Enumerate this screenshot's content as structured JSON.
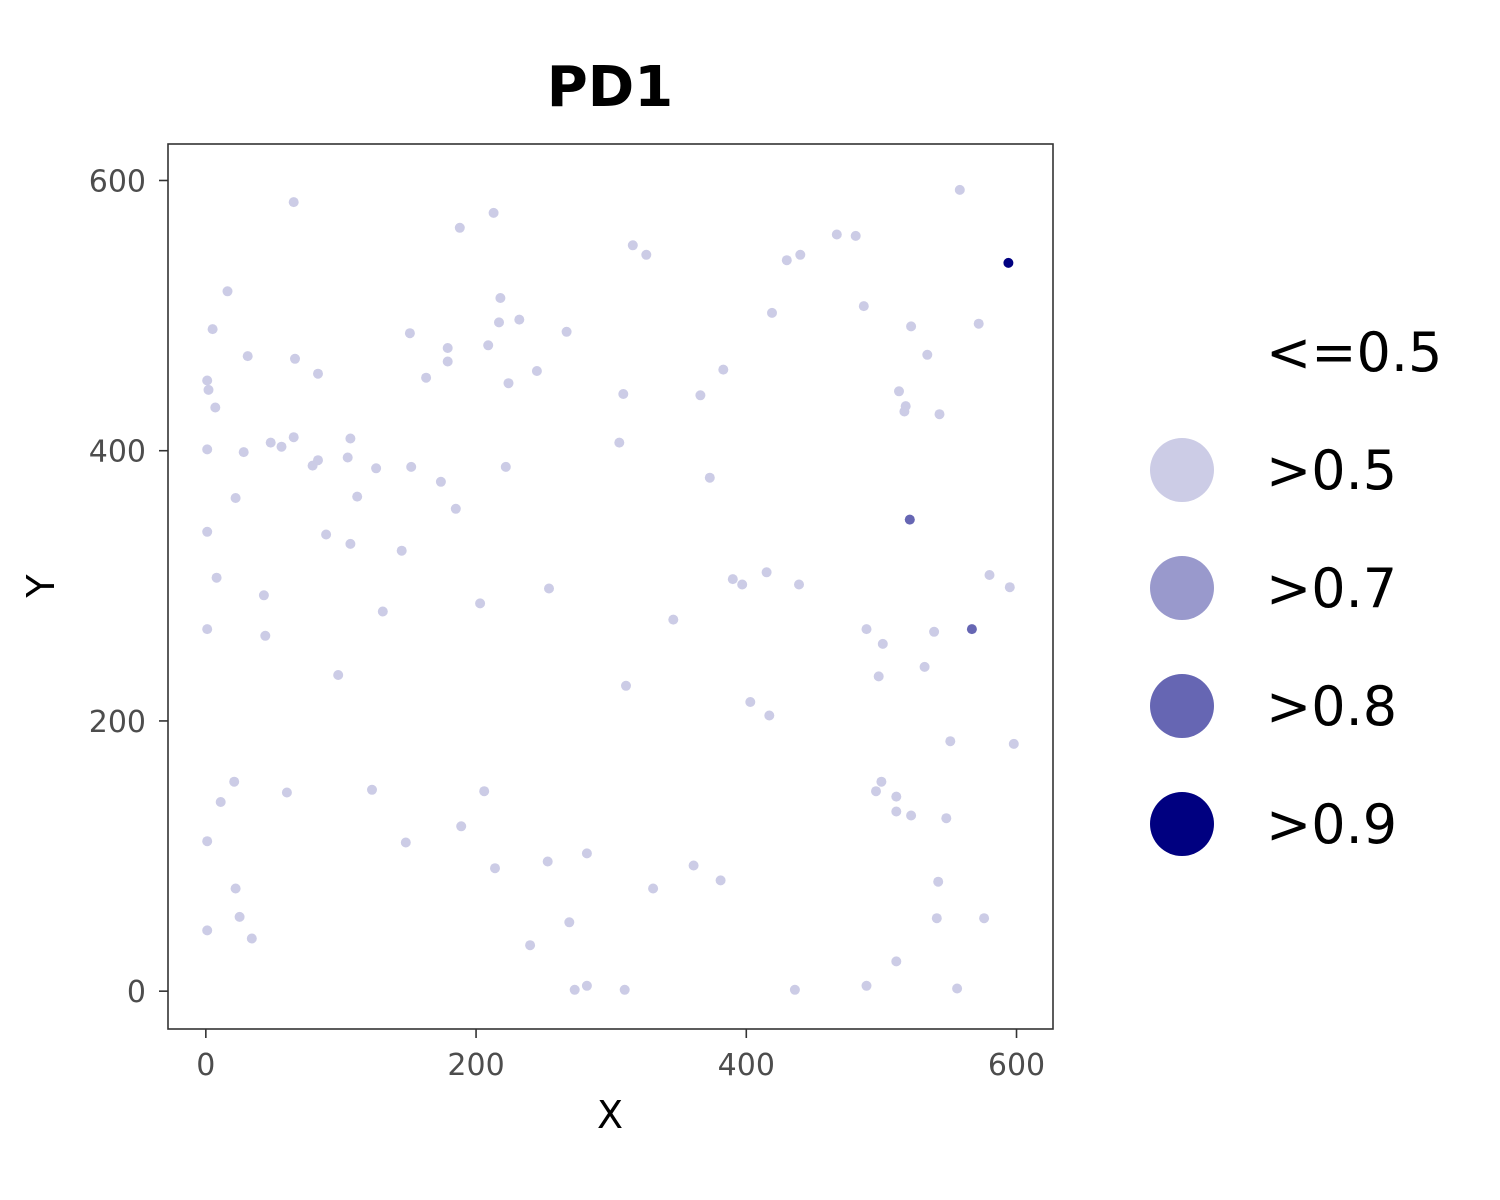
{
  "chart_data": {
    "type": "scatter",
    "title": "PD1",
    "xlabel": "X",
    "ylabel": "Y",
    "xlim": [
      -28,
      627
    ],
    "ylim": [
      -28,
      627
    ],
    "xticks": [
      "0",
      "200",
      "400",
      "600"
    ],
    "yticks": [
      "0",
      "200",
      "400",
      "600"
    ],
    "grid": false,
    "legend_position": "right",
    "legend": [
      {
        "label": "<=0.5",
        "color": null
      },
      {
        "label": ">0.5",
        "color": "#cccce6"
      },
      {
        "label": ">0.7",
        "color": "#9999cc"
      },
      {
        "label": ">0.8",
        "color": "#6666b3"
      },
      {
        "label": ">0.9",
        "color": "#000080"
      }
    ],
    "series": [
      {
        "name": ">0.5",
        "color": "#cccce6",
        "points": [
          [
            65,
            584
          ],
          [
            213,
            576
          ],
          [
            188,
            565
          ],
          [
            316,
            552
          ],
          [
            326,
            545
          ],
          [
            558,
            593
          ],
          [
            467,
            560
          ],
          [
            481,
            559
          ],
          [
            440,
            545
          ],
          [
            430,
            541
          ],
          [
            16,
            518
          ],
          [
            218,
            513
          ],
          [
            232,
            497
          ],
          [
            217,
            495
          ],
          [
            419,
            502
          ],
          [
            487,
            507
          ],
          [
            522,
            492
          ],
          [
            572,
            494
          ],
          [
            5,
            490
          ],
          [
            151,
            487
          ],
          [
            267,
            488
          ],
          [
            209,
            478
          ],
          [
            179,
            476
          ],
          [
            31,
            470
          ],
          [
            66,
            468
          ],
          [
            179,
            466
          ],
          [
            245,
            459
          ],
          [
            383,
            460
          ],
          [
            83,
            457
          ],
          [
            163,
            454
          ],
          [
            534,
            471
          ],
          [
            1,
            452
          ],
          [
            224,
            450
          ],
          [
            2,
            445
          ],
          [
            7,
            432
          ],
          [
            309,
            442
          ],
          [
            366,
            441
          ],
          [
            513,
            444
          ],
          [
            518,
            433
          ],
          [
            517,
            429
          ],
          [
            543,
            427
          ],
          [
            65,
            410
          ],
          [
            107,
            409
          ],
          [
            306,
            406
          ],
          [
            48,
            406
          ],
          [
            56,
            403
          ],
          [
            1,
            401
          ],
          [
            28,
            399
          ],
          [
            83,
            393
          ],
          [
            105,
            395
          ],
          [
            79,
            389
          ],
          [
            126,
            387
          ],
          [
            152,
            388
          ],
          [
            222,
            388
          ],
          [
            373,
            380
          ],
          [
            174,
            377
          ],
          [
            22,
            365
          ],
          [
            112,
            366
          ],
          [
            185,
            357
          ],
          [
            89,
            338
          ],
          [
            1,
            340
          ],
          [
            107,
            331
          ],
          [
            145,
            326
          ],
          [
            521,
            349
          ],
          [
            8,
            306
          ],
          [
            415,
            310
          ],
          [
            390,
            305
          ],
          [
            397,
            301
          ],
          [
            439,
            301
          ],
          [
            254,
            298
          ],
          [
            580,
            308
          ],
          [
            595,
            299
          ],
          [
            43,
            293
          ],
          [
            203,
            287
          ],
          [
            131,
            281
          ],
          [
            346,
            275
          ],
          [
            1,
            268
          ],
          [
            44,
            263
          ],
          [
            489,
            268
          ],
          [
            539,
            266
          ],
          [
            501,
            257
          ],
          [
            98,
            234
          ],
          [
            498,
            233
          ],
          [
            532,
            240
          ],
          [
            311,
            226
          ],
          [
            403,
            214
          ],
          [
            417,
            204
          ],
          [
            551,
            185
          ],
          [
            598,
            183
          ],
          [
            21,
            155
          ],
          [
            500,
            155
          ],
          [
            60,
            147
          ],
          [
            123,
            149
          ],
          [
            206,
            148
          ],
          [
            496,
            148
          ],
          [
            511,
            144
          ],
          [
            11,
            140
          ],
          [
            511,
            133
          ],
          [
            522,
            130
          ],
          [
            548,
            128
          ],
          [
            1,
            111
          ],
          [
            148,
            110
          ],
          [
            189,
            122
          ],
          [
            282,
            102
          ],
          [
            253,
            96
          ],
          [
            214,
            91
          ],
          [
            361,
            93
          ],
          [
            381,
            82
          ],
          [
            542,
            81
          ],
          [
            22,
            76
          ],
          [
            331,
            76
          ],
          [
            25,
            55
          ],
          [
            541,
            54
          ],
          [
            576,
            54
          ],
          [
            1,
            45
          ],
          [
            34,
            39
          ],
          [
            240,
            34
          ],
          [
            269,
            51
          ],
          [
            273,
            1
          ],
          [
            282,
            4
          ],
          [
            310,
            1
          ],
          [
            436,
            1
          ],
          [
            489,
            4
          ],
          [
            511,
            22
          ],
          [
            556,
            2
          ]
        ]
      },
      {
        "name": ">0.7",
        "color": "#9999cc",
        "points": []
      },
      {
        "name": ">0.8",
        "color": "#6666b3",
        "points": [
          [
            521,
            349
          ],
          [
            567,
            268
          ]
        ]
      },
      {
        "name": ">0.9",
        "color": "#000080",
        "points": [
          [
            594,
            539
          ]
        ]
      }
    ]
  }
}
